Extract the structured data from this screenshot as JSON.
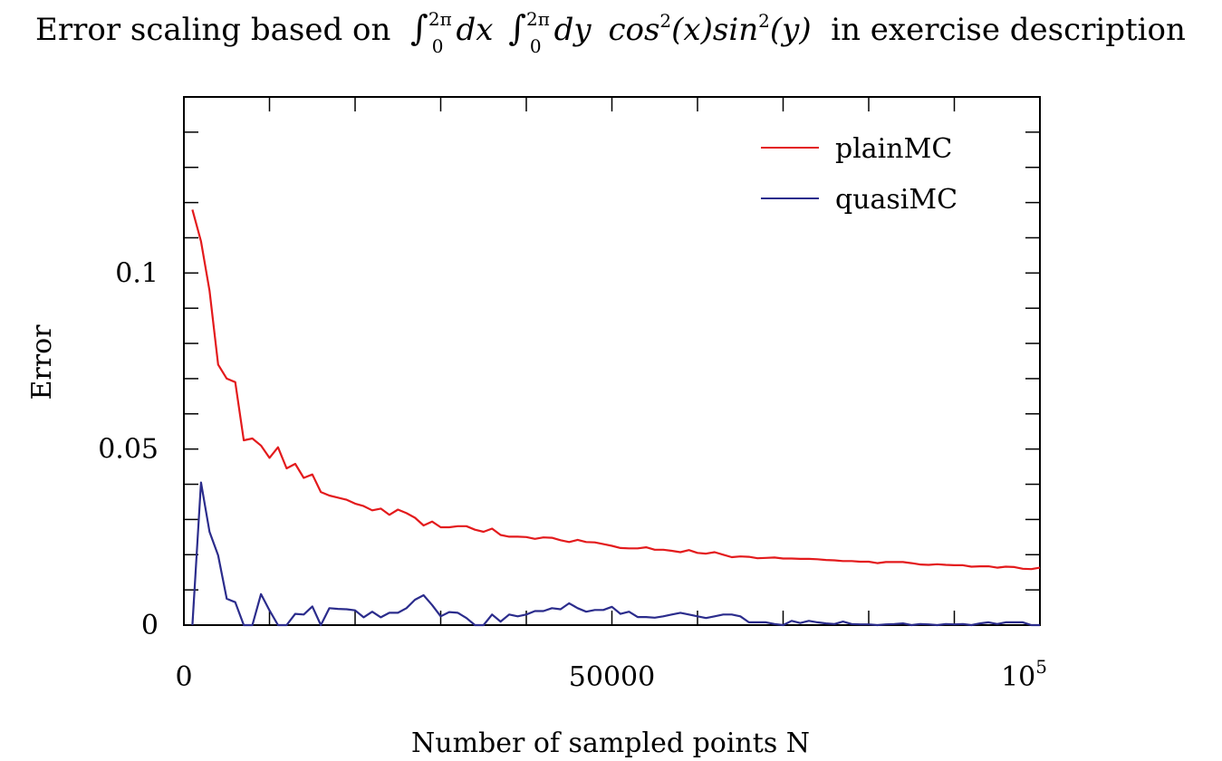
{
  "chart_data": {
    "type": "line",
    "title_parts": {
      "prefix": "Error scaling based on ",
      "integral_upper": "2π",
      "integral_lower": "0",
      "dx": "dx",
      "dy": "dy",
      "cos": "cos",
      "sin": "sin",
      "square": "2",
      "arg_x": "(x)",
      "arg_y": "(y)",
      "suffix": " in exercise description"
    },
    "xlabel": "Number of sampled points N",
    "ylabel": "Error",
    "xlim": [
      0,
      100000
    ],
    "ylim": [
      0,
      0.15
    ],
    "x_ticks": [
      {
        "value": 0,
        "label": "0"
      },
      {
        "value": 50000,
        "label": "50000"
      },
      {
        "value": 100000,
        "label": "10",
        "sup": "5"
      }
    ],
    "y_ticks": [
      {
        "value": 0,
        "label": "0"
      },
      {
        "value": 0.05,
        "label": "0.05"
      },
      {
        "value": 0.1,
        "label": "0.1"
      }
    ],
    "grid": false,
    "legend_position": "top-right",
    "series": [
      {
        "name": "plainMC",
        "color": "#e31a1c",
        "x": [
          1000,
          2000,
          3000,
          4000,
          5000,
          6000,
          7000,
          8000,
          9000,
          10000,
          11000,
          12000,
          13000,
          14000,
          15000,
          16000,
          17000,
          18000,
          19000,
          20000,
          21000,
          22000,
          23000,
          24000,
          25000,
          26000,
          27000,
          28000,
          29000,
          30000,
          31000,
          32000,
          33000,
          34000,
          35000,
          36000,
          37000,
          38000,
          39000,
          40000,
          41000,
          42000,
          43000,
          44000,
          45000,
          46000,
          47000,
          48000,
          49000,
          50000,
          51000,
          52000,
          53000,
          54000,
          55000,
          56000,
          57000,
          58000,
          59000,
          60000,
          61000,
          62000,
          63000,
          64000,
          65000,
          66000,
          67000,
          68000,
          69000,
          70000,
          71000,
          72000,
          73000,
          74000,
          75000,
          76000,
          77000,
          78000,
          79000,
          80000,
          81000,
          82000,
          83000,
          84000,
          85000,
          86000,
          87000,
          88000,
          89000,
          90000,
          91000,
          92000,
          93000,
          94000,
          95000,
          96000,
          97000,
          98000,
          99000,
          100000
        ],
        "y": [
          0.118,
          0.109,
          0.095,
          0.074,
          0.07,
          0.069,
          0.0525,
          0.053,
          0.051,
          0.0475,
          0.0505,
          0.0445,
          0.0458,
          0.0418,
          0.0428,
          0.0378,
          0.0368,
          0.0362,
          0.0356,
          0.0345,
          0.0338,
          0.0326,
          0.0331,
          0.0313,
          0.0328,
          0.0318,
          0.0305,
          0.0283,
          0.0294,
          0.0278,
          0.0278,
          0.0281,
          0.0281,
          0.0271,
          0.0265,
          0.0274,
          0.0256,
          0.0251,
          0.0251,
          0.025,
          0.0245,
          0.0249,
          0.0248,
          0.0241,
          0.0236,
          0.0242,
          0.0236,
          0.0235,
          0.023,
          0.0225,
          0.0219,
          0.0218,
          0.0218,
          0.0221,
          0.0214,
          0.0214,
          0.0211,
          0.0207,
          0.0213,
          0.0205,
          0.0203,
          0.0207,
          0.02,
          0.0193,
          0.0195,
          0.0194,
          0.019,
          0.0191,
          0.0192,
          0.0189,
          0.0189,
          0.0188,
          0.0188,
          0.0187,
          0.0185,
          0.0184,
          0.0182,
          0.0182,
          0.018,
          0.018,
          0.0176,
          0.0179,
          0.0179,
          0.0179,
          0.0176,
          0.0172,
          0.0171,
          0.0173,
          0.0171,
          0.017,
          0.017,
          0.0166,
          0.0167,
          0.0167,
          0.0163,
          0.0166,
          0.0165,
          0.016,
          0.0159,
          0.0163
        ]
      },
      {
        "name": "quasiMC",
        "color": "#2b2c8c",
        "x": [
          1000,
          2000,
          3000,
          4000,
          5000,
          6000,
          7000,
          8000,
          9000,
          10000,
          11000,
          12000,
          13000,
          14000,
          15000,
          16000,
          17000,
          18000,
          19000,
          20000,
          21000,
          22000,
          23000,
          24000,
          25000,
          26000,
          27000,
          28000,
          29000,
          30000,
          31000,
          32000,
          33000,
          34000,
          35000,
          36000,
          37000,
          38000,
          39000,
          40000,
          41000,
          42000,
          43000,
          44000,
          45000,
          46000,
          47000,
          48000,
          49000,
          50000,
          51000,
          52000,
          53000,
          54000,
          55000,
          56000,
          57000,
          58000,
          59000,
          60000,
          61000,
          62000,
          63000,
          64000,
          65000,
          66000,
          67000,
          68000,
          69000,
          70000,
          71000,
          72000,
          73000,
          74000,
          75000,
          76000,
          77000,
          78000,
          79000,
          80000,
          81000,
          82000,
          83000,
          84000,
          85000,
          86000,
          87000,
          88000,
          89000,
          90000,
          91000,
          92000,
          93000,
          94000,
          95000,
          96000,
          97000,
          98000,
          99000,
          100000
        ],
        "y": [
          0.0,
          0.0405,
          0.0265,
          0.0198,
          0.0075,
          0.0065,
          0.0,
          0.0,
          0.0088,
          0.0042,
          0.0,
          0.0,
          0.0032,
          0.003,
          0.0053,
          0.0,
          0.0048,
          0.0046,
          0.0045,
          0.0042,
          0.0022,
          0.0038,
          0.0022,
          0.0035,
          0.0035,
          0.0048,
          0.0072,
          0.0085,
          0.0057,
          0.0025,
          0.0037,
          0.0035,
          0.002,
          0.0,
          0.0,
          0.003,
          0.001,
          0.003,
          0.0025,
          0.003,
          0.004,
          0.004,
          0.0048,
          0.0045,
          0.0062,
          0.0048,
          0.0038,
          0.0043,
          0.0043,
          0.0052,
          0.0032,
          0.0038,
          0.0023,
          0.0023,
          0.0021,
          0.0025,
          0.003,
          0.0035,
          0.003,
          0.0025,
          0.002,
          0.0025,
          0.003,
          0.003,
          0.0025,
          0.0008,
          0.0008,
          0.0008,
          0.0003,
          0.0,
          0.0012,
          0.0006,
          0.0012,
          0.0008,
          0.0005,
          0.0003,
          0.001,
          0.0003,
          0.0002,
          0.0002,
          0.0,
          0.0002,
          0.0003,
          0.0005,
          0.0,
          0.0003,
          0.0002,
          0.0,
          0.0003,
          0.0002,
          0.0003,
          0.0,
          0.0005,
          0.0008,
          0.0003,
          0.0008,
          0.0008,
          0.0008,
          0.0,
          0.0
        ]
      }
    ]
  }
}
